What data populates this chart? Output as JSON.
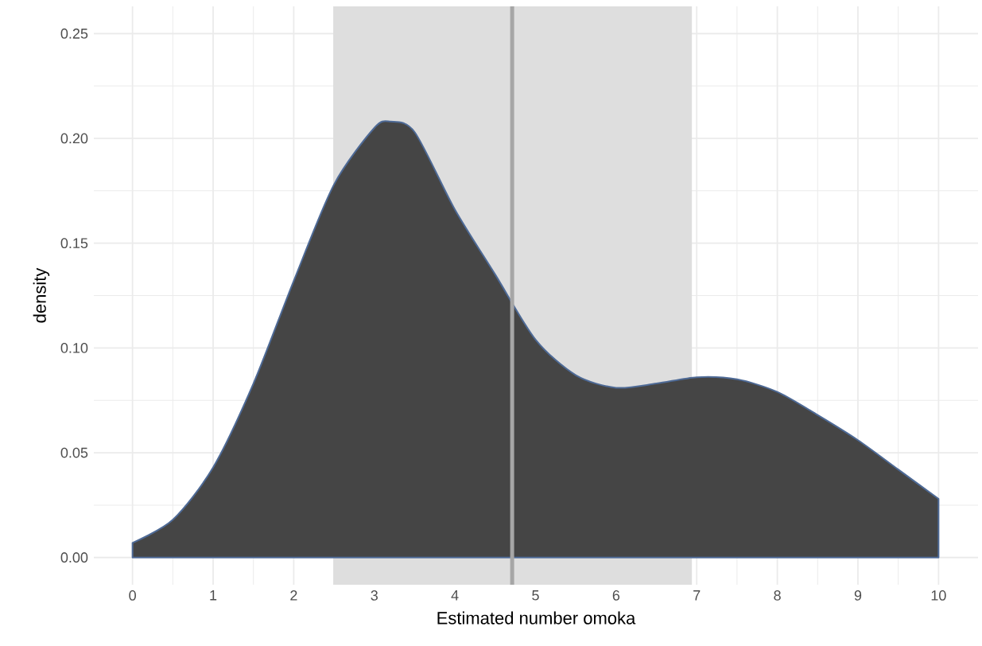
{
  "chart_data": {
    "type": "area",
    "xlabel": "Estimated number omoka",
    "ylabel": "density",
    "series": [
      {
        "color": "#454545",
        "x": [
          0,
          0.5,
          1,
          1.5,
          2,
          2.5,
          3,
          3.2,
          3.5,
          4,
          4.5,
          5,
          5.5,
          6,
          6.5,
          7,
          7.5,
          8,
          8.5,
          9,
          9.5,
          10
        ],
        "values": [
          0.007,
          0.018,
          0.043,
          0.083,
          0.132,
          0.178,
          0.205,
          0.208,
          0.203,
          0.166,
          0.135,
          0.104,
          0.087,
          0.081,
          0.083,
          0.086,
          0.085,
          0.079,
          0.068,
          0.056,
          0.042,
          0.028
        ]
      }
    ],
    "xlim": [
      -0.48,
      10.49
    ],
    "ylim": [
      -0.013,
      0.263
    ],
    "xticks": [
      0,
      1,
      2,
      3,
      4,
      5,
      6,
      7,
      8,
      9,
      10
    ],
    "yticks": [
      {
        "value": 0,
        "label": "0.00"
      },
      {
        "value": 0.05,
        "label": "0.05"
      },
      {
        "value": 0.1,
        "label": "0.10"
      },
      {
        "value": 0.15,
        "label": "0.15"
      },
      {
        "value": 0.2,
        "label": "0.20"
      },
      {
        "value": 0.25,
        "label": "0.25"
      }
    ],
    "grid": true,
    "bands": [
      {
        "axis": "x",
        "from": 2.49,
        "to": 6.94,
        "color": "#dedede"
      }
    ],
    "ref_lines": [
      {
        "axis": "x",
        "value": 4.71,
        "color": "#a6a6a6"
      }
    ]
  }
}
